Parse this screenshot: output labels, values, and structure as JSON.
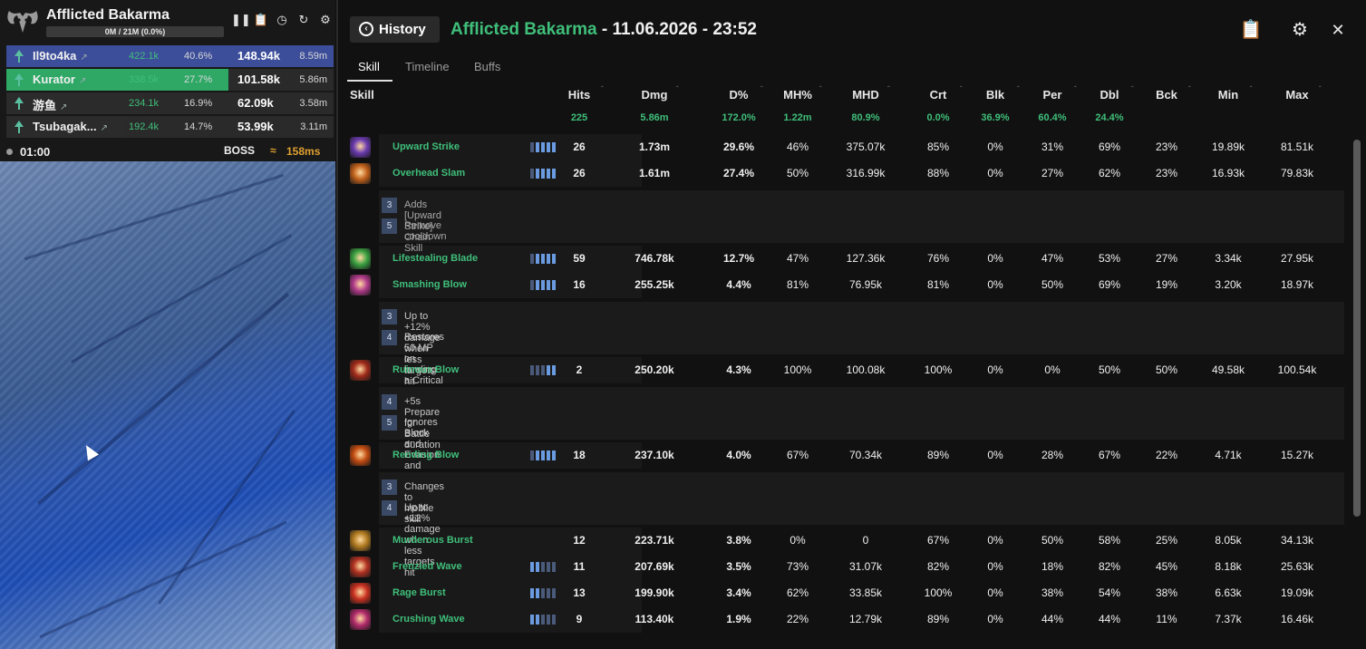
{
  "overlay": {
    "boss_name": "Afflicted Bakarma",
    "hp_text": "0M / 21M (0.0%)",
    "hp_fraction": 0.0,
    "players": [
      {
        "name": "Il9to4ka",
        "dps": "422.1k",
        "pct": "40.6%",
        "damage": "148.94k",
        "total": "8.59m",
        "share": 1.0,
        "color": "#3c4d9a",
        "class_icon": "ranger-icon"
      },
      {
        "name": "Kurator",
        "dps": "338.5k",
        "pct": "27.7%",
        "damage": "101.58k",
        "total": "5.86m",
        "share": 0.68,
        "color": "#2fa866",
        "class_icon": "mage-icon"
      },
      {
        "name": "游鱼",
        "dps": "234.1k",
        "pct": "16.9%",
        "damage": "62.09k",
        "total": "3.58m",
        "share": 0.42,
        "color": "#2b2b2b",
        "class_icon": "warrior-icon"
      },
      {
        "name": "Tsubagak...",
        "dps": "192.4k",
        "pct": "14.7%",
        "damage": "53.99k",
        "total": "3.11m",
        "share": 0.36,
        "color": "#2b2b2b",
        "class_icon": "ranger-icon"
      }
    ],
    "timer": "01:00",
    "boss_tag": "BOSS",
    "ping": "158ms"
  },
  "header": {
    "history_label": "History",
    "encounter_name": "Afflicted Bakarma",
    "encounter_date": " - 11.06.2026 - 23:52"
  },
  "tabs": [
    "Skill",
    "Timeline",
    "Buffs"
  ],
  "columns": [
    "Skill",
    "Hits",
    "Dmg",
    "D%",
    "MH%",
    "MHD",
    "Crt",
    "Blk",
    "Per",
    "Dbl",
    "Bck",
    "Min",
    "Max"
  ],
  "totals": {
    "hits": "225",
    "dmg": "5.86m",
    "mh": "172.0%",
    "mhd": "1.22m",
    "crt": "80.9%",
    "blk": "0.0%",
    "per": "36.9%",
    "dbl": "60.4%",
    "bck": "24.4%"
  },
  "skills": [
    {
      "name": "Upward Strike",
      "hits": "26",
      "dmg": "1.73m",
      "dp": "29.6%",
      "mh": "46%",
      "mhd": "375.07k",
      "crt": "85%",
      "blk": "0%",
      "per": "31%",
      "dbl": "69%",
      "bck": "23%",
      "min": "19.89k",
      "max": "81.51k",
      "icon_color": "#6a3ab0",
      "bars": [
        0,
        1,
        1,
        1,
        1
      ]
    },
    {
      "name": "Overhead Slam",
      "hits": "26",
      "dmg": "1.61m",
      "dp": "27.4%",
      "mh": "50%",
      "mhd": "316.99k",
      "crt": "88%",
      "blk": "0%",
      "per": "27%",
      "dbl": "62%",
      "bck": "23%",
      "min": "16.93k",
      "max": "79.83k",
      "icon_color": "#c0601a",
      "bars": [
        0,
        1,
        1,
        1,
        1
      ],
      "options": [
        {
          "n": "3",
          "t": "Adds [Upward Strike] Chain Skill"
        },
        {
          "n": "5",
          "t": "Remove cooldown"
        }
      ]
    },
    {
      "name": "Lifestealing Blade",
      "hits": "59",
      "dmg": "746.78k",
      "dp": "12.7%",
      "mh": "47%",
      "mhd": "127.36k",
      "crt": "76%",
      "blk": "0%",
      "per": "47%",
      "dbl": "53%",
      "bck": "27%",
      "min": "3.34k",
      "max": "27.95k",
      "icon_color": "#3aa040",
      "bars": [
        0,
        1,
        1,
        1,
        1
      ]
    },
    {
      "name": "Smashing Blow",
      "hits": "16",
      "dmg": "255.25k",
      "dp": "4.4%",
      "mh": "81%",
      "mhd": "76.95k",
      "crt": "81%",
      "blk": "0%",
      "per": "50%",
      "dbl": "69%",
      "bck": "19%",
      "min": "3.20k",
      "max": "18.97k",
      "icon_color": "#b03a8a",
      "bars": [
        0,
        1,
        1,
        1,
        1
      ],
      "options": [
        {
          "n": "3",
          "t": "Up to +12% damage when less targets hit"
        },
        {
          "n": "4",
          "t": "Restores 50 MP on landing a Critical Hit"
        }
      ]
    },
    {
      "name": "Ruinous Blow",
      "hits": "2",
      "dmg": "250.20k",
      "dp": "4.3%",
      "mh": "100%",
      "mhd": "100.08k",
      "crt": "100%",
      "blk": "0%",
      "per": "0%",
      "dbl": "50%",
      "bck": "50%",
      "min": "49.58k",
      "max": "100.54k",
      "icon_color": "#a02a1a",
      "bars": [
        0,
        0,
        0,
        1,
        1
      ],
      "options": [
        {
          "n": "4",
          "t": "+5s Prepare for Battle duration"
        },
        {
          "n": "5",
          "t": "Ignores Block and Evasion and lands as Multi-Hit"
        }
      ]
    },
    {
      "name": "Rending Blow",
      "hits": "18",
      "dmg": "237.10k",
      "dp": "4.0%",
      "mh": "67%",
      "mhd": "70.34k",
      "crt": "89%",
      "blk": "0%",
      "per": "28%",
      "dbl": "67%",
      "bck": "22%",
      "min": "4.71k",
      "max": "15.27k",
      "icon_color": "#c04a10",
      "bars": [
        0,
        1,
        1,
        1,
        1
      ],
      "options": [
        {
          "n": "3",
          "t": "Changes to mobile skill"
        },
        {
          "n": "4",
          "t": "Up to +12% damage when less targets hit"
        }
      ]
    },
    {
      "name": "Murderous Burst",
      "hits": "12",
      "dmg": "223.71k",
      "dp": "3.8%",
      "mh": "0%",
      "mhd": "0",
      "crt": "67%",
      "blk": "0%",
      "per": "50%",
      "dbl": "58%",
      "bck": "25%",
      "min": "8.05k",
      "max": "34.13k",
      "icon_color": "#b07a20",
      "bars": null
    },
    {
      "name": "Frenzied Wave",
      "hits": "11",
      "dmg": "207.69k",
      "dp": "3.5%",
      "mh": "73%",
      "mhd": "31.07k",
      "crt": "82%",
      "blk": "0%",
      "per": "18%",
      "dbl": "82%",
      "bck": "45%",
      "min": "8.18k",
      "max": "25.63k",
      "icon_color": "#b03020",
      "bars": [
        1,
        1,
        0,
        0,
        0
      ]
    },
    {
      "name": "Rage Burst",
      "hits": "13",
      "dmg": "199.90k",
      "dp": "3.4%",
      "mh": "62%",
      "mhd": "33.85k",
      "crt": "100%",
      "blk": "0%",
      "per": "38%",
      "dbl": "54%",
      "bck": "38%",
      "min": "6.63k",
      "max": "19.09k",
      "icon_color": "#c83020",
      "bars": [
        1,
        1,
        0,
        0,
        0
      ]
    },
    {
      "name": "Crushing Wave",
      "hits": "9",
      "dmg": "113.40k",
      "dp": "1.9%",
      "mh": "22%",
      "mhd": "12.79k",
      "crt": "89%",
      "blk": "0%",
      "per": "44%",
      "dbl": "44%",
      "bck": "11%",
      "min": "7.37k",
      "max": "16.46k",
      "icon_color": "#b02a6a",
      "bars": [
        1,
        1,
        0,
        0,
        0
      ]
    }
  ]
}
